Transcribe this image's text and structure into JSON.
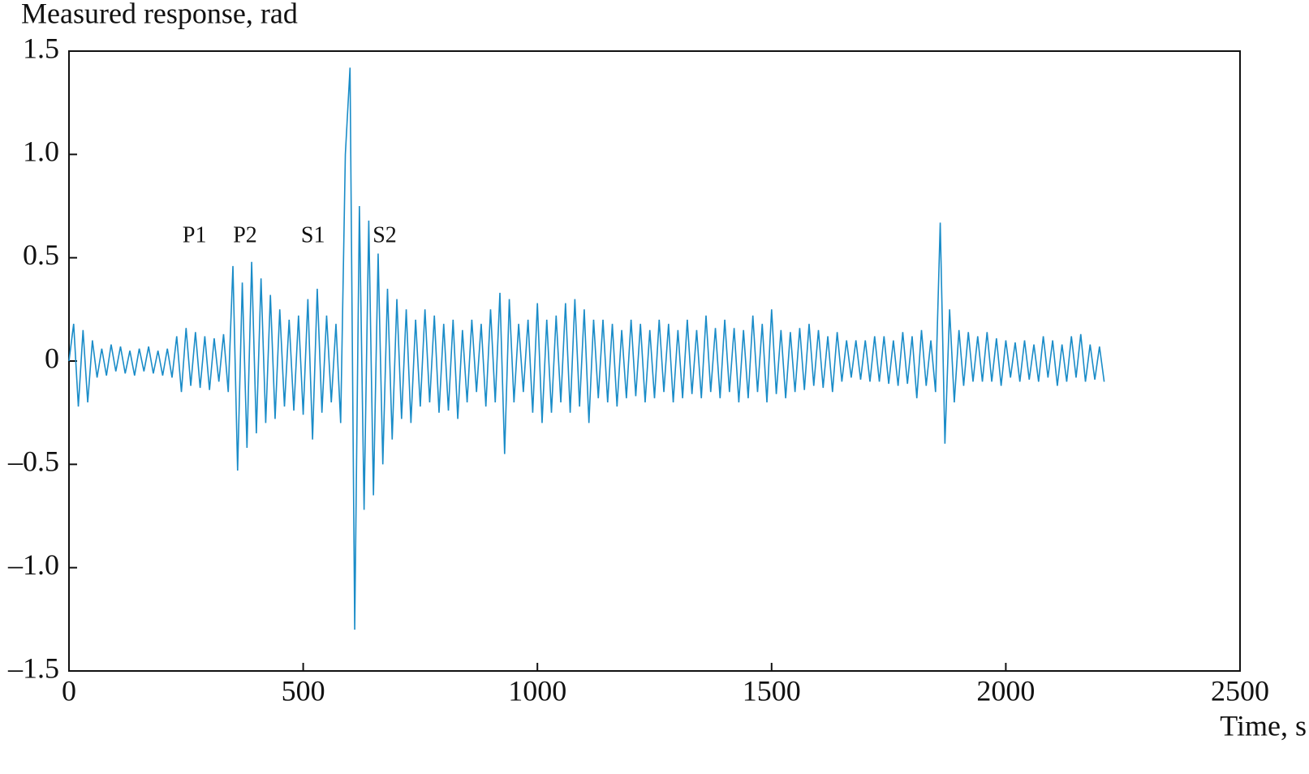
{
  "chart_data": {
    "type": "line",
    "y_label": "Measured response, rad",
    "x_label": "Time, s",
    "xlim": [
      0,
      2500
    ],
    "xticks": [
      0,
      500,
      1000,
      1500,
      2000,
      2500
    ],
    "ylim": [
      -1.5,
      1.5
    ],
    "yticks": [
      {
        "value": -1.5,
        "label": "–1.5"
      },
      {
        "value": -1,
        "label": "–1.0"
      },
      {
        "value": -0.5,
        "label": "–0.5"
      },
      0,
      0.5,
      {
        "value": 1,
        "label": "1.0"
      },
      1.5
    ],
    "grid": false,
    "annotations": [
      {
        "text": "P1",
        "x": 268,
        "y": 0.6
      },
      {
        "text": "P2",
        "x": 376,
        "y": 0.6
      },
      {
        "text": "S1",
        "x": 521,
        "y": 0.6
      },
      {
        "text": "S2",
        "x": 674,
        "y": 0.6
      }
    ],
    "x": [
      0,
      10,
      20,
      30,
      40,
      50,
      60,
      70,
      80,
      90,
      100,
      110,
      120,
      130,
      140,
      150,
      160,
      170,
      180,
      190,
      200,
      210,
      220,
      230,
      240,
      250,
      260,
      270,
      280,
      290,
      300,
      310,
      320,
      330,
      340,
      350,
      360,
      370,
      380,
      390,
      400,
      410,
      420,
      430,
      440,
      450,
      460,
      470,
      480,
      490,
      500,
      510,
      520,
      530,
      540,
      550,
      560,
      570,
      580,
      590,
      600,
      610,
      620,
      630,
      640,
      650,
      660,
      670,
      680,
      690,
      700,
      710,
      720,
      730,
      740,
      750,
      760,
      770,
      780,
      790,
      800,
      810,
      820,
      830,
      840,
      850,
      860,
      870,
      880,
      890,
      900,
      910,
      920,
      930,
      940,
      950,
      960,
      970,
      980,
      990,
      1000,
      1010,
      1020,
      1030,
      1040,
      1050,
      1060,
      1070,
      1080,
      1090,
      1100,
      1110,
      1120,
      1130,
      1140,
      1150,
      1160,
      1170,
      1180,
      1190,
      1200,
      1210,
      1220,
      1230,
      1240,
      1250,
      1260,
      1270,
      1280,
      1290,
      1300,
      1310,
      1320,
      1330,
      1340,
      1350,
      1360,
      1370,
      1380,
      1390,
      1400,
      1410,
      1420,
      1430,
      1440,
      1450,
      1460,
      1470,
      1480,
      1490,
      1500,
      1510,
      1520,
      1530,
      1540,
      1550,
      1560,
      1570,
      1580,
      1590,
      1600,
      1610,
      1620,
      1630,
      1640,
      1650,
      1660,
      1670,
      1680,
      1690,
      1700,
      1710,
      1720,
      1730,
      1740,
      1750,
      1760,
      1770,
      1780,
      1790,
      1800,
      1810,
      1820,
      1830,
      1840,
      1850,
      1860,
      1870,
      1880,
      1890,
      1900,
      1910,
      1920,
      1930,
      1940,
      1950,
      1960,
      1970,
      1980,
      1990,
      2000,
      2010,
      2020,
      2030,
      2040,
      2050,
      2060,
      2070,
      2080,
      2090,
      2100,
      2110,
      2120,
      2130,
      2140,
      2150,
      2160,
      2170,
      2180,
      2190,
      2200,
      2210
    ],
    "series": [
      {
        "color": "#1a8cc8",
        "values": [
          0,
          0.18,
          -0.22,
          0.15,
          -0.2,
          0.1,
          -0.08,
          0.06,
          -0.07,
          0.08,
          -0.05,
          0.07,
          -0.06,
          0.05,
          -0.07,
          0.06,
          -0.05,
          0.07,
          -0.06,
          0.05,
          -0.07,
          0.06,
          -0.08,
          0.12,
          -0.15,
          0.16,
          -0.12,
          0.14,
          -0.13,
          0.12,
          -0.14,
          0.11,
          -0.1,
          0.13,
          -0.15,
          0.46,
          -0.53,
          0.38,
          -0.42,
          0.48,
          -0.35,
          0.4,
          -0.3,
          0.32,
          -0.28,
          0.25,
          -0.22,
          0.2,
          -0.24,
          0.22,
          -0.26,
          0.3,
          -0.38,
          0.35,
          -0.25,
          0.22,
          -0.2,
          0.18,
          -0.3,
          1.0,
          1.42,
          -1.3,
          0.75,
          -0.72,
          0.68,
          -0.65,
          0.52,
          -0.5,
          0.35,
          -0.38,
          0.3,
          -0.28,
          0.25,
          -0.3,
          0.2,
          -0.22,
          0.25,
          -0.2,
          0.22,
          -0.25,
          0.18,
          -0.24,
          0.2,
          -0.28,
          0.15,
          -0.2,
          0.2,
          -0.15,
          0.18,
          -0.22,
          0.25,
          -0.2,
          0.33,
          -0.45,
          0.3,
          -0.2,
          0.18,
          -0.15,
          0.2,
          -0.25,
          0.28,
          -0.3,
          0.2,
          -0.25,
          0.22,
          -0.2,
          0.28,
          -0.25,
          0.3,
          -0.22,
          0.25,
          -0.3,
          0.2,
          -0.18,
          0.2,
          -0.2,
          0.18,
          -0.22,
          0.15,
          -0.18,
          0.2,
          -0.17,
          0.18,
          -0.2,
          0.15,
          -0.18,
          0.2,
          -0.15,
          0.18,
          -0.2,
          0.15,
          -0.18,
          0.2,
          -0.16,
          0.15,
          -0.18,
          0.22,
          -0.15,
          0.16,
          -0.18,
          0.2,
          -0.15,
          0.16,
          -0.2,
          0.15,
          -0.18,
          0.22,
          -0.15,
          0.18,
          -0.2,
          0.25,
          -0.16,
          0.15,
          -0.18,
          0.14,
          -0.15,
          0.16,
          -0.14,
          0.18,
          -0.12,
          0.15,
          -0.13,
          0.12,
          -0.15,
          0.14,
          -0.1,
          0.1,
          -0.08,
          0.1,
          -0.09,
          0.1,
          -0.1,
          0.12,
          -0.1,
          0.12,
          -0.11,
          0.1,
          -0.12,
          0.14,
          -0.11,
          0.12,
          -0.18,
          0.15,
          -0.12,
          0.1,
          -0.15,
          0.67,
          -0.4,
          0.25,
          -0.2,
          0.15,
          -0.12,
          0.14,
          -0.1,
          0.12,
          -0.1,
          0.14,
          -0.1,
          0.11,
          -0.12,
          0.1,
          -0.08,
          0.09,
          -0.1,
          0.1,
          -0.09,
          0.08,
          -0.1,
          0.12,
          -0.08,
          0.1,
          -0.12,
          0.08,
          -0.1,
          0.12,
          -0.08,
          0.13,
          -0.1,
          0.08,
          -0.09,
          0.07,
          -0.1
        ]
      }
    ]
  }
}
